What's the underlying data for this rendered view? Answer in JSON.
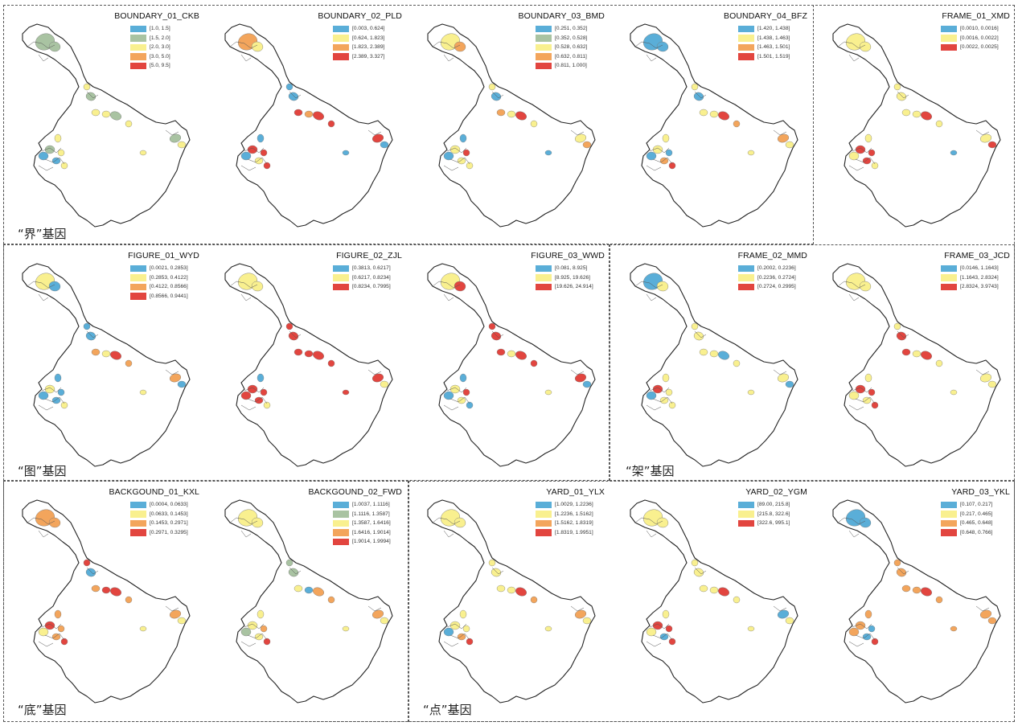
{
  "colors": {
    "blue": "#5aaed8",
    "sage": "#a9c3a2",
    "yellow": "#f9f08f",
    "orange": "#f3a55c",
    "red": "#e2453f",
    "outline": "#222222"
  },
  "groups": [
    {
      "key": "jie",
      "title": "“界”基因"
    },
    {
      "key": "tu",
      "title": "“图”基因"
    },
    {
      "key": "jia",
      "title": "“架”基因"
    },
    {
      "key": "di",
      "title": "“底”基因"
    },
    {
      "key": "dian",
      "title": "“点”基因"
    }
  ],
  "panels": [
    {
      "title": "BOUNDARY_01_CKB",
      "legend": [
        {
          "label": "[1.0, 1.5]",
          "color": "blue"
        },
        {
          "label": "[1.5, 2.0]",
          "color": "sage"
        },
        {
          "label": "[2.0, 3.0]",
          "color": "yellow"
        },
        {
          "label": "[3.0, 5.0]",
          "color": "orange"
        },
        {
          "label": "[5.0, 9.5]",
          "color": "red"
        }
      ],
      "blobs": [
        "sage",
        "sage",
        "yellow",
        "sage",
        "yellow",
        "yellow",
        "sage",
        "yellow",
        "yellow",
        "sage",
        "blue",
        "yellow",
        "blue",
        "yellow",
        "yellow",
        "sage",
        "yellow"
      ]
    },
    {
      "title": "BOUNDARY_02_PLD",
      "legend": [
        {
          "label": "[0.003, 0.624]",
          "color": "blue"
        },
        {
          "label": "[0.624, 1.823]",
          "color": "yellow"
        },
        {
          "label": "[1.823, 2.389]",
          "color": "orange"
        },
        {
          "label": "[2.389, 3.327]",
          "color": "red"
        }
      ],
      "blobs": [
        "orange",
        "yellow",
        "blue",
        "blue",
        "red",
        "orange",
        "red",
        "red",
        "blue",
        "red",
        "blue",
        "red",
        "yellow",
        "red",
        "blue",
        "red",
        "blue"
      ]
    },
    {
      "title": "BOUNDARY_03_BMD",
      "legend": [
        {
          "label": "[0.251, 0.352]",
          "color": "blue"
        },
        {
          "label": "[0.352, 0.528]",
          "color": "sage"
        },
        {
          "label": "[0.528, 0.632]",
          "color": "yellow"
        },
        {
          "label": "[0.632, 0.811]",
          "color": "orange"
        },
        {
          "label": "[0.811, 1.000]",
          "color": "red"
        }
      ],
      "blobs": [
        "yellow",
        "orange",
        "yellow",
        "blue",
        "orange",
        "yellow",
        "red",
        "yellow",
        "blue",
        "yellow",
        "blue",
        "red",
        "yellow",
        "yellow",
        "blue",
        "yellow",
        "orange"
      ]
    },
    {
      "title": "BOUNDARY_04_BFZ",
      "legend": [
        {
          "label": "[1.420, 1.438]",
          "color": "blue"
        },
        {
          "label": "[1.438, 1.463]",
          "color": "yellow"
        },
        {
          "label": "[1.463, 1.501]",
          "color": "orange"
        },
        {
          "label": "[1.501, 1.519]",
          "color": "red"
        }
      ],
      "blobs": [
        "blue",
        "blue",
        "yellow",
        "blue",
        "yellow",
        "yellow",
        "red",
        "orange",
        "yellow",
        "yellow",
        "blue",
        "blue",
        "orange",
        "red",
        "yellow",
        "orange",
        "yellow"
      ]
    },
    {
      "title": "FRAME_01_XMD",
      "legend": [
        {
          "label": "[0.0010, 0.0016]",
          "color": "blue"
        },
        {
          "label": "[0.0016, 0.0022]",
          "color": "yellow"
        },
        {
          "label": "[0.0022, 0.0025]",
          "color": "red"
        }
      ],
      "blobs": [
        "yellow",
        "yellow",
        "yellow",
        "yellow",
        "yellow",
        "yellow",
        "red",
        "yellow",
        "yellow",
        "red",
        "yellow",
        "red",
        "red",
        "yellow",
        "blue",
        "yellow",
        "red"
      ]
    },
    {
      "title": "FIGURE_01_WYD",
      "legend": [
        {
          "label": "[0.0021, 0.2853]",
          "color": "blue"
        },
        {
          "label": "[0.2853, 0.4122]",
          "color": "yellow"
        },
        {
          "label": "[0.4122, 0.8566]",
          "color": "orange"
        },
        {
          "label": "[0.8566, 0.9441]",
          "color": "red"
        }
      ],
      "blobs": [
        "yellow",
        "blue",
        "blue",
        "blue",
        "orange",
        "yellow",
        "red",
        "orange",
        "blue",
        "yellow",
        "blue",
        "blue",
        "blue",
        "yellow",
        "yellow",
        "orange",
        "blue"
      ]
    },
    {
      "title": "FIGURE_02_ZJL",
      "legend": [
        {
          "label": "[0.3813, 0.6217]",
          "color": "blue"
        },
        {
          "label": "[0.6217, 0.8234]",
          "color": "yellow"
        },
        {
          "label": "[0.8234, 0.7995]",
          "color": "red"
        }
      ],
      "blobs": [
        "yellow",
        "yellow",
        "red",
        "red",
        "red",
        "red",
        "red",
        "red",
        "blue",
        "red",
        "red",
        "red",
        "red",
        "yellow",
        "red",
        "red",
        "yellow"
      ]
    },
    {
      "title": "FIGURE_03_WWD",
      "legend": [
        {
          "label": "[0.081, 8.925]",
          "color": "blue"
        },
        {
          "label": "[8.925, 19.626]",
          "color": "yellow"
        },
        {
          "label": "[19.626, 24.914]",
          "color": "red"
        }
      ],
      "blobs": [
        "yellow",
        "red",
        "red",
        "red",
        "red",
        "yellow",
        "red",
        "red",
        "blue",
        "yellow",
        "blue",
        "red",
        "yellow",
        "blue",
        "yellow",
        "red",
        "blue"
      ]
    },
    {
      "title": "FRAME_02_MMD",
      "legend": [
        {
          "label": "[0.2002, 0.2236]",
          "color": "blue"
        },
        {
          "label": "[0.2236, 0.2724]",
          "color": "yellow"
        },
        {
          "label": "[0.2724, 0.2995]",
          "color": "red"
        }
      ],
      "blobs": [
        "blue",
        "yellow",
        "yellow",
        "yellow",
        "yellow",
        "yellow",
        "blue",
        "yellow",
        "yellow",
        "red",
        "blue",
        "yellow",
        "yellow",
        "yellow",
        "yellow",
        "yellow",
        "blue"
      ]
    },
    {
      "title": "FRAME_03_JCD",
      "legend": [
        {
          "label": "[0.0146, 1.1643]",
          "color": "blue"
        },
        {
          "label": "[1.1643, 2.8324]",
          "color": "yellow"
        },
        {
          "label": "[2.8324, 3.9743]",
          "color": "red"
        }
      ],
      "blobs": [
        "yellow",
        "yellow",
        "yellow",
        "red",
        "red",
        "yellow",
        "red",
        "yellow",
        "yellow",
        "red",
        "yellow",
        "red",
        "yellow",
        "red",
        "yellow",
        "yellow",
        "yellow"
      ]
    },
    {
      "title": "BACKGOUND_01_KXL",
      "legend": [
        {
          "label": "[0.0004, 0.0633]",
          "color": "blue"
        },
        {
          "label": "[0.0633, 0.1453]",
          "color": "yellow"
        },
        {
          "label": "[0.1453, 0.2971]",
          "color": "orange"
        },
        {
          "label": "[0.2971, 0.3295]",
          "color": "red"
        }
      ],
      "blobs": [
        "orange",
        "orange",
        "red",
        "blue",
        "orange",
        "red",
        "red",
        "orange",
        "orange",
        "red",
        "yellow",
        "orange",
        "orange",
        "red",
        "yellow",
        "orange",
        "yellow"
      ]
    },
    {
      "title": "BACKGOUND_02_FWD",
      "legend": [
        {
          "label": "[1.0037, 1.1116]",
          "color": "blue"
        },
        {
          "label": "[1.1116, 1.3587]",
          "color": "sage"
        },
        {
          "label": "[1.3587, 1.6416]",
          "color": "yellow"
        },
        {
          "label": "[1.6416, 1.9014]",
          "color": "orange"
        },
        {
          "label": "[1.9014, 1.9994]",
          "color": "red"
        }
      ],
      "blobs": [
        "yellow",
        "yellow",
        "sage",
        "sage",
        "yellow",
        "blue",
        "orange",
        "orange",
        "yellow",
        "yellow",
        "sage",
        "orange",
        "yellow",
        "red",
        "yellow",
        "orange",
        "yellow"
      ]
    },
    {
      "title": "YARD_01_YLX",
      "legend": [
        {
          "label": "[1.0029, 1.2236]",
          "color": "blue"
        },
        {
          "label": "[1.2236, 1.5162]",
          "color": "yellow"
        },
        {
          "label": "[1.5162, 1.8319]",
          "color": "orange"
        },
        {
          "label": "[1.8319, 1.9951]",
          "color": "red"
        }
      ],
      "blobs": [
        "yellow",
        "yellow",
        "yellow",
        "yellow",
        "yellow",
        "yellow",
        "red",
        "orange",
        "yellow",
        "yellow",
        "blue",
        "yellow",
        "orange",
        "red",
        "yellow",
        "orange",
        "yellow"
      ]
    },
    {
      "title": "YARD_02_YGM",
      "legend": [
        {
          "label": "[89.00, 215.8]",
          "color": "blue"
        },
        {
          "label": "[215.8, 322.6]",
          "color": "yellow"
        },
        {
          "label": "[322.6, 995.1]",
          "color": "red"
        }
      ],
      "blobs": [
        "yellow",
        "yellow",
        "yellow",
        "yellow",
        "yellow",
        "yellow",
        "red",
        "yellow",
        "yellow",
        "red",
        "yellow",
        "red",
        "blue",
        "red",
        "yellow",
        "blue",
        "yellow"
      ]
    },
    {
      "title": "YARD_03_YKL",
      "legend": [
        {
          "label": "[0.107, 0.217]",
          "color": "blue"
        },
        {
          "label": "[0.217, 0.465]",
          "color": "yellow"
        },
        {
          "label": "[0.465, 0.648]",
          "color": "orange"
        },
        {
          "label": "[0.648, 0.766]",
          "color": "red"
        }
      ],
      "blobs": [
        "blue",
        "blue",
        "orange",
        "orange",
        "orange",
        "orange",
        "red",
        "orange",
        "orange",
        "orange",
        "orange",
        "blue",
        "blue",
        "red",
        "orange",
        "orange",
        "orange"
      ]
    }
  ]
}
